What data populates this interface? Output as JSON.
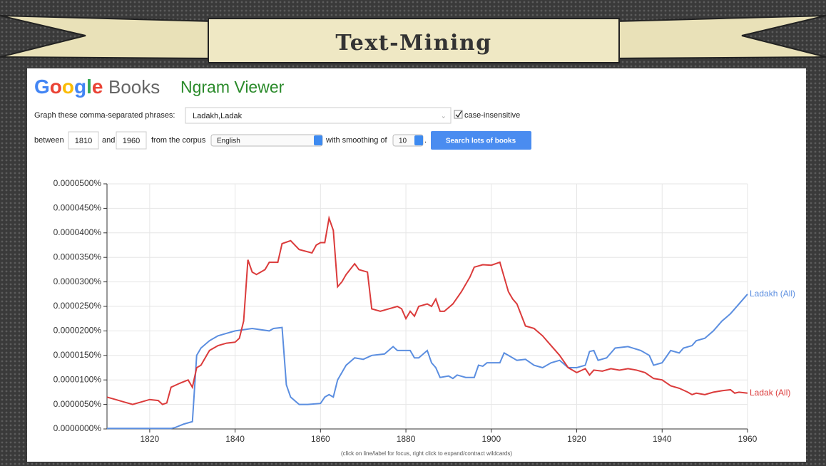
{
  "header": {
    "title": "Text-Mining"
  },
  "logo": {
    "google": "Google",
    "books": "Books",
    "product": "Ngram Viewer"
  },
  "form": {
    "phrases_label": "Graph these comma-separated phrases:",
    "phrases": "Ladakh,Ladak",
    "case_label": "case-insensitive",
    "between": "between",
    "start_year": "1810",
    "and": "and",
    "end_year": "1960",
    "corpus_label": "from the corpus",
    "corpus": "English",
    "smoothing_label": "with smoothing of",
    "smoothing": "10",
    "period": ".",
    "button": "Search lots of books"
  },
  "footnote": "(click on line/label for focus, right click to expand/contract wildcards)",
  "chart_data": {
    "type": "line",
    "xlim": [
      1810,
      1960
    ],
    "xticks": [
      1820,
      1840,
      1860,
      1880,
      1900,
      1920,
      1940,
      1960
    ],
    "ylim": [
      0,
      5e-05
    ],
    "yticks": [
      {
        "value": 0,
        "label": "0.0000000%"
      },
      {
        "value": 5e-06,
        "label": "0.0000050%"
      },
      {
        "value": 1e-05,
        "label": "0.0000100%"
      },
      {
        "value": 1.5e-05,
        "label": "0.0000150%"
      },
      {
        "value": 2e-05,
        "label": "0.0000200%"
      },
      {
        "value": 2.5e-05,
        "label": "0.0000250%"
      },
      {
        "value": 3e-05,
        "label": "0.0000300%"
      },
      {
        "value": 3.5e-05,
        "label": "0.0000350%"
      },
      {
        "value": 4e-05,
        "label": "0.0000400%"
      },
      {
        "value": 4.5e-05,
        "label": "0.0000450%"
      },
      {
        "value": 5e-05,
        "label": "0.0000500%"
      }
    ],
    "grid": true,
    "series": [
      {
        "name": "Ladakh (All)",
        "color": "#5b8ee0",
        "x": [
          1810,
          1815,
          1820,
          1825,
          1826,
          1828,
          1830,
          1831,
          1832,
          1834,
          1836,
          1838,
          1840,
          1844,
          1848,
          1849,
          1851,
          1852,
          1853,
          1855,
          1857,
          1860,
          1861,
          1862,
          1863,
          1864,
          1866,
          1868,
          1870,
          1872,
          1875,
          1877,
          1878,
          1881,
          1882,
          1883,
          1885,
          1886,
          1887,
          1888,
          1890,
          1891,
          1892,
          1894,
          1896,
          1897,
          1898,
          1899,
          1902,
          1903,
          1904,
          1906,
          1908,
          1910,
          1912,
          1914,
          1916,
          1918,
          1920,
          1922,
          1923,
          1924,
          1925,
          1927,
          1929,
          1932,
          1935,
          1937,
          1938,
          1940,
          1942,
          1944,
          1945,
          1947,
          1948,
          1950,
          1952,
          1954,
          1956,
          1958,
          1960
        ],
        "values": [
          1e-07,
          1e-07,
          1e-07,
          1e-07,
          3e-07,
          1e-06,
          1.5e-06,
          1.5e-05,
          1.65e-05,
          1.8e-05,
          1.9e-05,
          1.95e-05,
          2e-05,
          2.05e-05,
          2e-05,
          2.05e-05,
          2.07e-05,
          9e-06,
          6.5e-06,
          5e-06,
          5e-06,
          5.2e-06,
          6.5e-06,
          7e-06,
          6.5e-06,
          1e-05,
          1.3e-05,
          1.45e-05,
          1.42e-05,
          1.5e-05,
          1.53e-05,
          1.68e-05,
          1.6e-05,
          1.6e-05,
          1.45e-05,
          1.45e-05,
          1.6e-05,
          1.35e-05,
          1.25e-05,
          1.05e-05,
          1.08e-05,
          1.03e-05,
          1.1e-05,
          1.05e-05,
          1.05e-05,
          1.3e-05,
          1.28e-05,
          1.35e-05,
          1.35e-05,
          1.55e-05,
          1.5e-05,
          1.4e-05,
          1.42e-05,
          1.3e-05,
          1.25e-05,
          1.35e-05,
          1.4e-05,
          1.25e-05,
          1.25e-05,
          1.3e-05,
          1.58e-05,
          1.6e-05,
          1.4e-05,
          1.45e-05,
          1.65e-05,
          1.68e-05,
          1.6e-05,
          1.5e-05,
          1.3e-05,
          1.35e-05,
          1.6e-05,
          1.55e-05,
          1.65e-05,
          1.7e-05,
          1.8e-05,
          1.85e-05,
          2e-05,
          2.2e-05,
          2.35e-05,
          2.55e-05,
          2.75e-05
        ]
      },
      {
        "name": "Ladak (All)",
        "color": "#db3b3b",
        "x": [
          1810,
          1812,
          1814,
          1816,
          1818,
          1820,
          1822,
          1823,
          1824,
          1825,
          1827,
          1829,
          1830,
          1831,
          1832,
          1834,
          1836,
          1838,
          1840,
          1841,
          1842,
          1843,
          1844,
          1845,
          1847,
          1848,
          1850,
          1851,
          1853,
          1855,
          1858,
          1859,
          1860,
          1861,
          1862,
          1863,
          1864,
          1865,
          1866,
          1868,
          1869,
          1871,
          1872,
          1874,
          1876,
          1878,
          1879,
          1880,
          1881,
          1882,
          1883,
          1885,
          1886,
          1887,
          1888,
          1889,
          1891,
          1893,
          1895,
          1896,
          1898,
          1900,
          1902,
          1903,
          1904,
          1905,
          1906,
          1908,
          1910,
          1912,
          1914,
          1916,
          1918,
          1920,
          1922,
          1923,
          1924,
          1926,
          1928,
          1930,
          1932,
          1934,
          1936,
          1938,
          1940,
          1942,
          1944,
          1946,
          1947,
          1948,
          1950,
          1952,
          1954,
          1956,
          1957,
          1958,
          1960
        ],
        "values": [
          6.5e-06,
          6e-06,
          5.5e-06,
          5e-06,
          5.5e-06,
          6e-06,
          5.8e-06,
          5e-06,
          5.3e-06,
          8.5e-06,
          9.3e-06,
          1e-05,
          8.5e-06,
          1.25e-05,
          1.3e-05,
          1.6e-05,
          1.7e-05,
          1.75e-05,
          1.77e-05,
          1.85e-05,
          2.2e-05,
          3.45e-05,
          3.2e-05,
          3.15e-05,
          3.25e-05,
          3.4e-05,
          3.4e-05,
          3.78e-05,
          3.84e-05,
          3.66e-05,
          3.59e-05,
          3.75e-05,
          3.8e-05,
          3.8e-05,
          4.3e-05,
          4.05e-05,
          2.9e-05,
          3e-05,
          3.15e-05,
          3.37e-05,
          3.25e-05,
          3.2e-05,
          2.45e-05,
          2.4e-05,
          2.45e-05,
          2.5e-05,
          2.45e-05,
          2.25e-05,
          2.4e-05,
          2.3e-05,
          2.5e-05,
          2.55e-05,
          2.5e-05,
          2.65e-05,
          2.4e-05,
          2.4e-05,
          2.55e-05,
          2.8e-05,
          3.1e-05,
          3.3e-05,
          3.35e-05,
          3.34e-05,
          3.4e-05,
          3.1e-05,
          2.8e-05,
          2.65e-05,
          2.55e-05,
          2.1e-05,
          2.05e-05,
          1.9e-05,
          1.7e-05,
          1.5e-05,
          1.25e-05,
          1.15e-05,
          1.23e-05,
          1.1e-05,
          1.2e-05,
          1.18e-05,
          1.23e-05,
          1.2e-05,
          1.23e-05,
          1.2e-05,
          1.15e-05,
          1.03e-05,
          1e-05,
          8.8e-06,
          8.3e-06,
          7.5e-06,
          7e-06,
          7.3e-06,
          7e-06,
          7.5e-06,
          7.8e-06,
          8e-06,
          7.3e-06,
          7.5e-06,
          7.3e-06
        ]
      }
    ]
  }
}
